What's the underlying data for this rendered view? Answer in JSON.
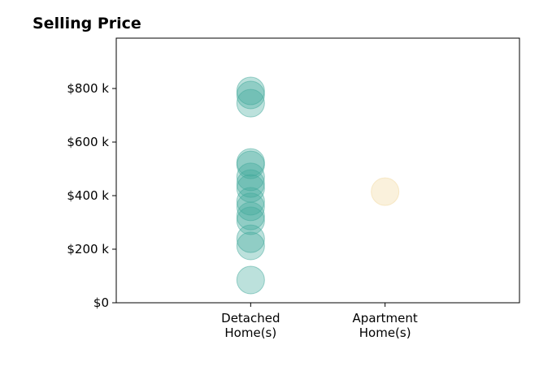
{
  "chart_data": {
    "type": "scatter",
    "title": "Selling Price",
    "xlim": [
      -1,
      2
    ],
    "xticks": [
      {
        "value": 0,
        "label": "Detached\nHome(s)"
      },
      {
        "value": 1,
        "label": "Apartment\nHome(s)"
      }
    ],
    "ylim": [
      0,
      988000
    ],
    "yticks": [
      {
        "value": 0,
        "label": "$0"
      },
      {
        "value": 200000,
        "label": "$200 k"
      },
      {
        "value": 400000,
        "label": "$400 k"
      },
      {
        "value": 600000,
        "label": "$600 k"
      },
      {
        "value": 800000,
        "label": "$800 k"
      }
    ],
    "series": [
      {
        "color": "#3fa89a",
        "x": [
          0,
          0,
          0,
          0,
          0,
          0,
          0,
          0,
          0,
          0,
          0,
          0,
          0,
          0,
          0
        ],
        "values": [
          85000,
          212000,
          239000,
          306000,
          324000,
          358000,
          379000,
          427000,
          445000,
          470000,
          515000,
          524000,
          745000,
          776000,
          791000
        ]
      },
      {
        "color": "#f2d89b",
        "x": [
          1
        ],
        "values": [
          415000
        ]
      }
    ]
  }
}
